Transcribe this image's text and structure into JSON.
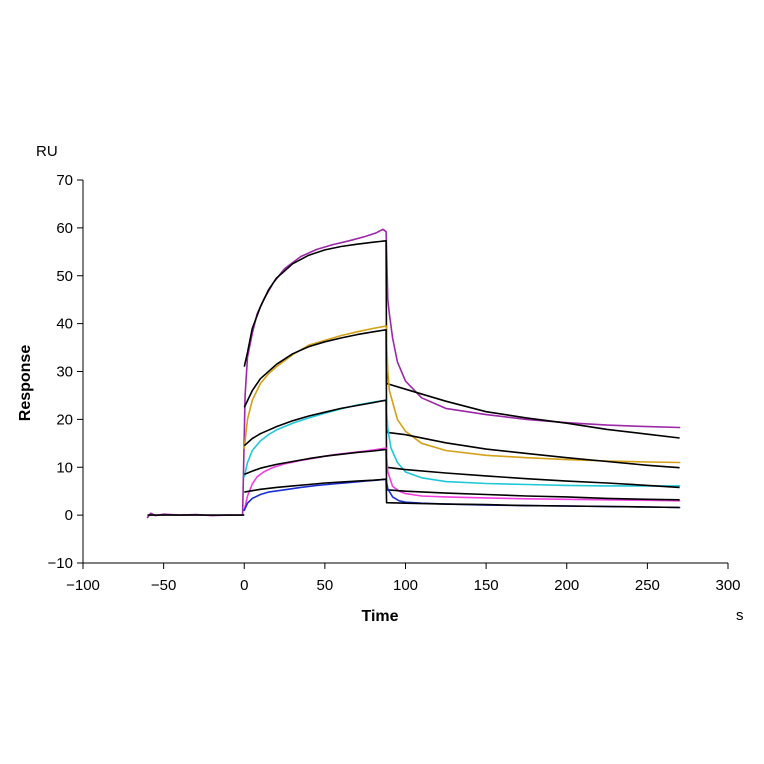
{
  "chart_data": {
    "type": "line",
    "title": "",
    "xlabel": "Time",
    "ylabel": "Response",
    "x_unit": "s",
    "y_unit": "RU",
    "xlim": [
      -100,
      300
    ],
    "ylim": [
      -10,
      70
    ],
    "x_ticks": [
      -100,
      -50,
      0,
      50,
      100,
      150,
      200,
      250,
      300
    ],
    "y_ticks": [
      -10,
      0,
      10,
      20,
      30,
      40,
      50,
      60,
      70
    ],
    "x_tick_labels": [
      "−100",
      "−50",
      "0",
      "50",
      "100",
      "150",
      "200",
      "250",
      "300"
    ],
    "y_tick_labels": [
      "−10",
      "0",
      "10",
      "20",
      "30",
      "40",
      "50",
      "60",
      "70"
    ],
    "grid": false,
    "legend": "none",
    "injection_start": 0,
    "injection_end": 88,
    "series": [
      {
        "color": "#9c27a8",
        "points": [
          [
            -60,
            -0.5
          ],
          [
            -58,
            0.4
          ],
          [
            -55,
            -0.1
          ],
          [
            -50,
            0.2
          ],
          [
            -40,
            0
          ],
          [
            -30,
            0.1
          ],
          [
            -20,
            -0.1
          ],
          [
            -10,
            0
          ],
          [
            -1,
            0
          ],
          [
            0.5,
            25
          ],
          [
            2,
            33
          ],
          [
            5,
            38
          ],
          [
            8,
            42
          ],
          [
            12,
            45
          ],
          [
            18,
            48.5
          ],
          [
            25,
            51.5
          ],
          [
            35,
            54
          ],
          [
            45,
            55.5
          ],
          [
            55,
            56.5
          ],
          [
            65,
            57.3
          ],
          [
            75,
            58.2
          ],
          [
            82,
            59
          ],
          [
            86,
            59.7
          ],
          [
            88,
            59.2
          ],
          [
            89,
            45
          ],
          [
            90,
            42
          ],
          [
            92,
            37
          ],
          [
            95,
            32
          ],
          [
            100,
            28
          ],
          [
            110,
            24.5
          ],
          [
            125,
            22.3
          ],
          [
            150,
            21
          ],
          [
            175,
            20
          ],
          [
            200,
            19.3
          ],
          [
            225,
            18.8
          ],
          [
            250,
            18.5
          ],
          [
            270,
            18.3
          ]
        ]
      },
      {
        "color": "#000000",
        "points": [
          [
            0,
            31
          ],
          [
            2,
            34
          ],
          [
            5,
            39
          ],
          [
            10,
            43.5
          ],
          [
            15,
            47
          ],
          [
            20,
            49.5
          ],
          [
            30,
            52.5
          ],
          [
            40,
            54.3
          ],
          [
            50,
            55.4
          ],
          [
            60,
            56.1
          ],
          [
            70,
            56.6
          ],
          [
            80,
            57
          ],
          [
            88,
            57.3
          ],
          [
            88.3,
            27.5
          ],
          [
            100,
            26.3
          ],
          [
            125,
            23.8
          ],
          [
            150,
            21.6
          ],
          [
            175,
            20.3
          ],
          [
            200,
            19.2
          ],
          [
            225,
            17.9
          ],
          [
            250,
            16.9
          ],
          [
            270,
            16.1
          ]
        ]
      },
      {
        "color": "#d4a017",
        "points": [
          [
            0,
            14
          ],
          [
            2,
            20
          ],
          [
            5,
            24
          ],
          [
            10,
            27.5
          ],
          [
            15,
            29.5
          ],
          [
            20,
            31
          ],
          [
            30,
            33.5
          ],
          [
            40,
            35.5
          ],
          [
            50,
            36.5
          ],
          [
            60,
            37.5
          ],
          [
            70,
            38.3
          ],
          [
            80,
            39
          ],
          [
            88,
            39.5
          ],
          [
            89,
            30
          ],
          [
            90,
            26
          ],
          [
            95,
            20
          ],
          [
            100,
            17.5
          ],
          [
            110,
            15
          ],
          [
            125,
            13.5
          ],
          [
            150,
            12.5
          ],
          [
            175,
            12
          ],
          [
            200,
            11.6
          ],
          [
            225,
            11.3
          ],
          [
            250,
            11.1
          ],
          [
            270,
            11
          ]
        ]
      },
      {
        "color": "#000000",
        "points": [
          [
            0,
            22.5
          ],
          [
            5,
            26
          ],
          [
            10,
            28.5
          ],
          [
            20,
            31.5
          ],
          [
            30,
            33.7
          ],
          [
            40,
            35.2
          ],
          [
            50,
            36.2
          ],
          [
            60,
            37
          ],
          [
            70,
            37.7
          ],
          [
            80,
            38.3
          ],
          [
            88,
            38.7
          ],
          [
            88.3,
            17.3
          ],
          [
            100,
            16.8
          ],
          [
            125,
            15.1
          ],
          [
            150,
            13.8
          ],
          [
            175,
            12.9
          ],
          [
            200,
            12
          ],
          [
            225,
            11.2
          ],
          [
            250,
            10.4
          ],
          [
            270,
            9.9
          ]
        ]
      },
      {
        "color": "#1fc8d8",
        "points": [
          [
            0,
            8
          ],
          [
            2,
            11
          ],
          [
            5,
            13.5
          ],
          [
            10,
            15.5
          ],
          [
            15,
            16.8
          ],
          [
            20,
            17.8
          ],
          [
            30,
            19.2
          ],
          [
            40,
            20.3
          ],
          [
            50,
            21.3
          ],
          [
            60,
            22.2
          ],
          [
            70,
            23
          ],
          [
            80,
            23.6
          ],
          [
            88,
            24
          ],
          [
            89,
            18
          ],
          [
            91,
            14
          ],
          [
            95,
            11
          ],
          [
            100,
            9
          ],
          [
            110,
            7.8
          ],
          [
            125,
            7
          ],
          [
            150,
            6.6
          ],
          [
            175,
            6.4
          ],
          [
            200,
            6.2
          ],
          [
            225,
            6.1
          ],
          [
            250,
            6.1
          ],
          [
            270,
            6.1
          ]
        ]
      },
      {
        "color": "#000000",
        "points": [
          [
            0,
            14.5
          ],
          [
            5,
            16
          ],
          [
            10,
            17
          ],
          [
            20,
            18.5
          ],
          [
            30,
            19.7
          ],
          [
            40,
            20.7
          ],
          [
            50,
            21.5
          ],
          [
            60,
            22.3
          ],
          [
            70,
            22.9
          ],
          [
            80,
            23.5
          ],
          [
            88,
            24
          ],
          [
            88.3,
            10
          ],
          [
            100,
            9.5
          ],
          [
            125,
            8.8
          ],
          [
            150,
            8.2
          ],
          [
            175,
            7.6
          ],
          [
            200,
            7.1
          ],
          [
            225,
            6.7
          ],
          [
            250,
            6.2
          ],
          [
            270,
            5.8
          ]
        ]
      },
      {
        "color": "#f03ee0",
        "points": [
          [
            0,
            1
          ],
          [
            2,
            4
          ],
          [
            5,
            6.5
          ],
          [
            8,
            8
          ],
          [
            12,
            9
          ],
          [
            18,
            10
          ],
          [
            25,
            10.7
          ],
          [
            35,
            11.4
          ],
          [
            45,
            12
          ],
          [
            55,
            12.6
          ],
          [
            65,
            13
          ],
          [
            75,
            13.4
          ],
          [
            82,
            13.7
          ],
          [
            88,
            14
          ],
          [
            89,
            9
          ],
          [
            92,
            6
          ],
          [
            96,
            5
          ],
          [
            100,
            4.5
          ],
          [
            110,
            4
          ],
          [
            125,
            3.8
          ],
          [
            150,
            3.6
          ],
          [
            175,
            3.4
          ],
          [
            200,
            3.3
          ],
          [
            225,
            3.2
          ],
          [
            250,
            3.1
          ],
          [
            270,
            3
          ]
        ]
      },
      {
        "color": "#000000",
        "points": [
          [
            0,
            8.5
          ],
          [
            5,
            9.2
          ],
          [
            10,
            9.8
          ],
          [
            20,
            10.6
          ],
          [
            30,
            11.2
          ],
          [
            40,
            11.8
          ],
          [
            50,
            12.3
          ],
          [
            60,
            12.7
          ],
          [
            70,
            13.1
          ],
          [
            80,
            13.4
          ],
          [
            88,
            13.7
          ],
          [
            88.3,
            5.3
          ],
          [
            100,
            5
          ],
          [
            125,
            4.6
          ],
          [
            150,
            4.3
          ],
          [
            175,
            4
          ],
          [
            200,
            3.8
          ],
          [
            225,
            3.5
          ],
          [
            250,
            3.3
          ],
          [
            270,
            3.2
          ]
        ]
      },
      {
        "color": "#1a2fd0",
        "points": [
          [
            0,
            1
          ],
          [
            2,
            2.5
          ],
          [
            5,
            3.5
          ],
          [
            10,
            4.3
          ],
          [
            15,
            4.8
          ],
          [
            25,
            5.3
          ],
          [
            35,
            5.8
          ],
          [
            45,
            6.2
          ],
          [
            55,
            6.5
          ],
          [
            65,
            6.8
          ],
          [
            75,
            7.1
          ],
          [
            82,
            7.3
          ],
          [
            88,
            7.5
          ],
          [
            89,
            5.5
          ],
          [
            92,
            3.8
          ],
          [
            96,
            3
          ],
          [
            100,
            2.7
          ],
          [
            110,
            2.5
          ],
          [
            125,
            2.3
          ],
          [
            150,
            2.1
          ],
          [
            175,
            2
          ],
          [
            200,
            1.9
          ],
          [
            225,
            1.8
          ],
          [
            250,
            1.7
          ],
          [
            270,
            1.6
          ]
        ]
      },
      {
        "color": "#000000",
        "points": [
          [
            0,
            4.8
          ],
          [
            5,
            5.1
          ],
          [
            10,
            5.4
          ],
          [
            20,
            5.8
          ],
          [
            30,
            6.1
          ],
          [
            40,
            6.4
          ],
          [
            50,
            6.7
          ],
          [
            60,
            6.9
          ],
          [
            70,
            7.1
          ],
          [
            80,
            7.3
          ],
          [
            88,
            7.5
          ],
          [
            88.3,
            2.6
          ],
          [
            100,
            2.5
          ],
          [
            125,
            2.3
          ],
          [
            150,
            2.2
          ],
          [
            175,
            2
          ],
          [
            200,
            1.9
          ],
          [
            225,
            1.8
          ],
          [
            250,
            1.7
          ],
          [
            270,
            1.6
          ]
        ]
      },
      {
        "color": "#000000",
        "points": [
          [
            -60,
            0
          ],
          [
            -30,
            0
          ],
          [
            -1,
            0
          ],
          [
            0,
            0
          ]
        ]
      }
    ]
  }
}
